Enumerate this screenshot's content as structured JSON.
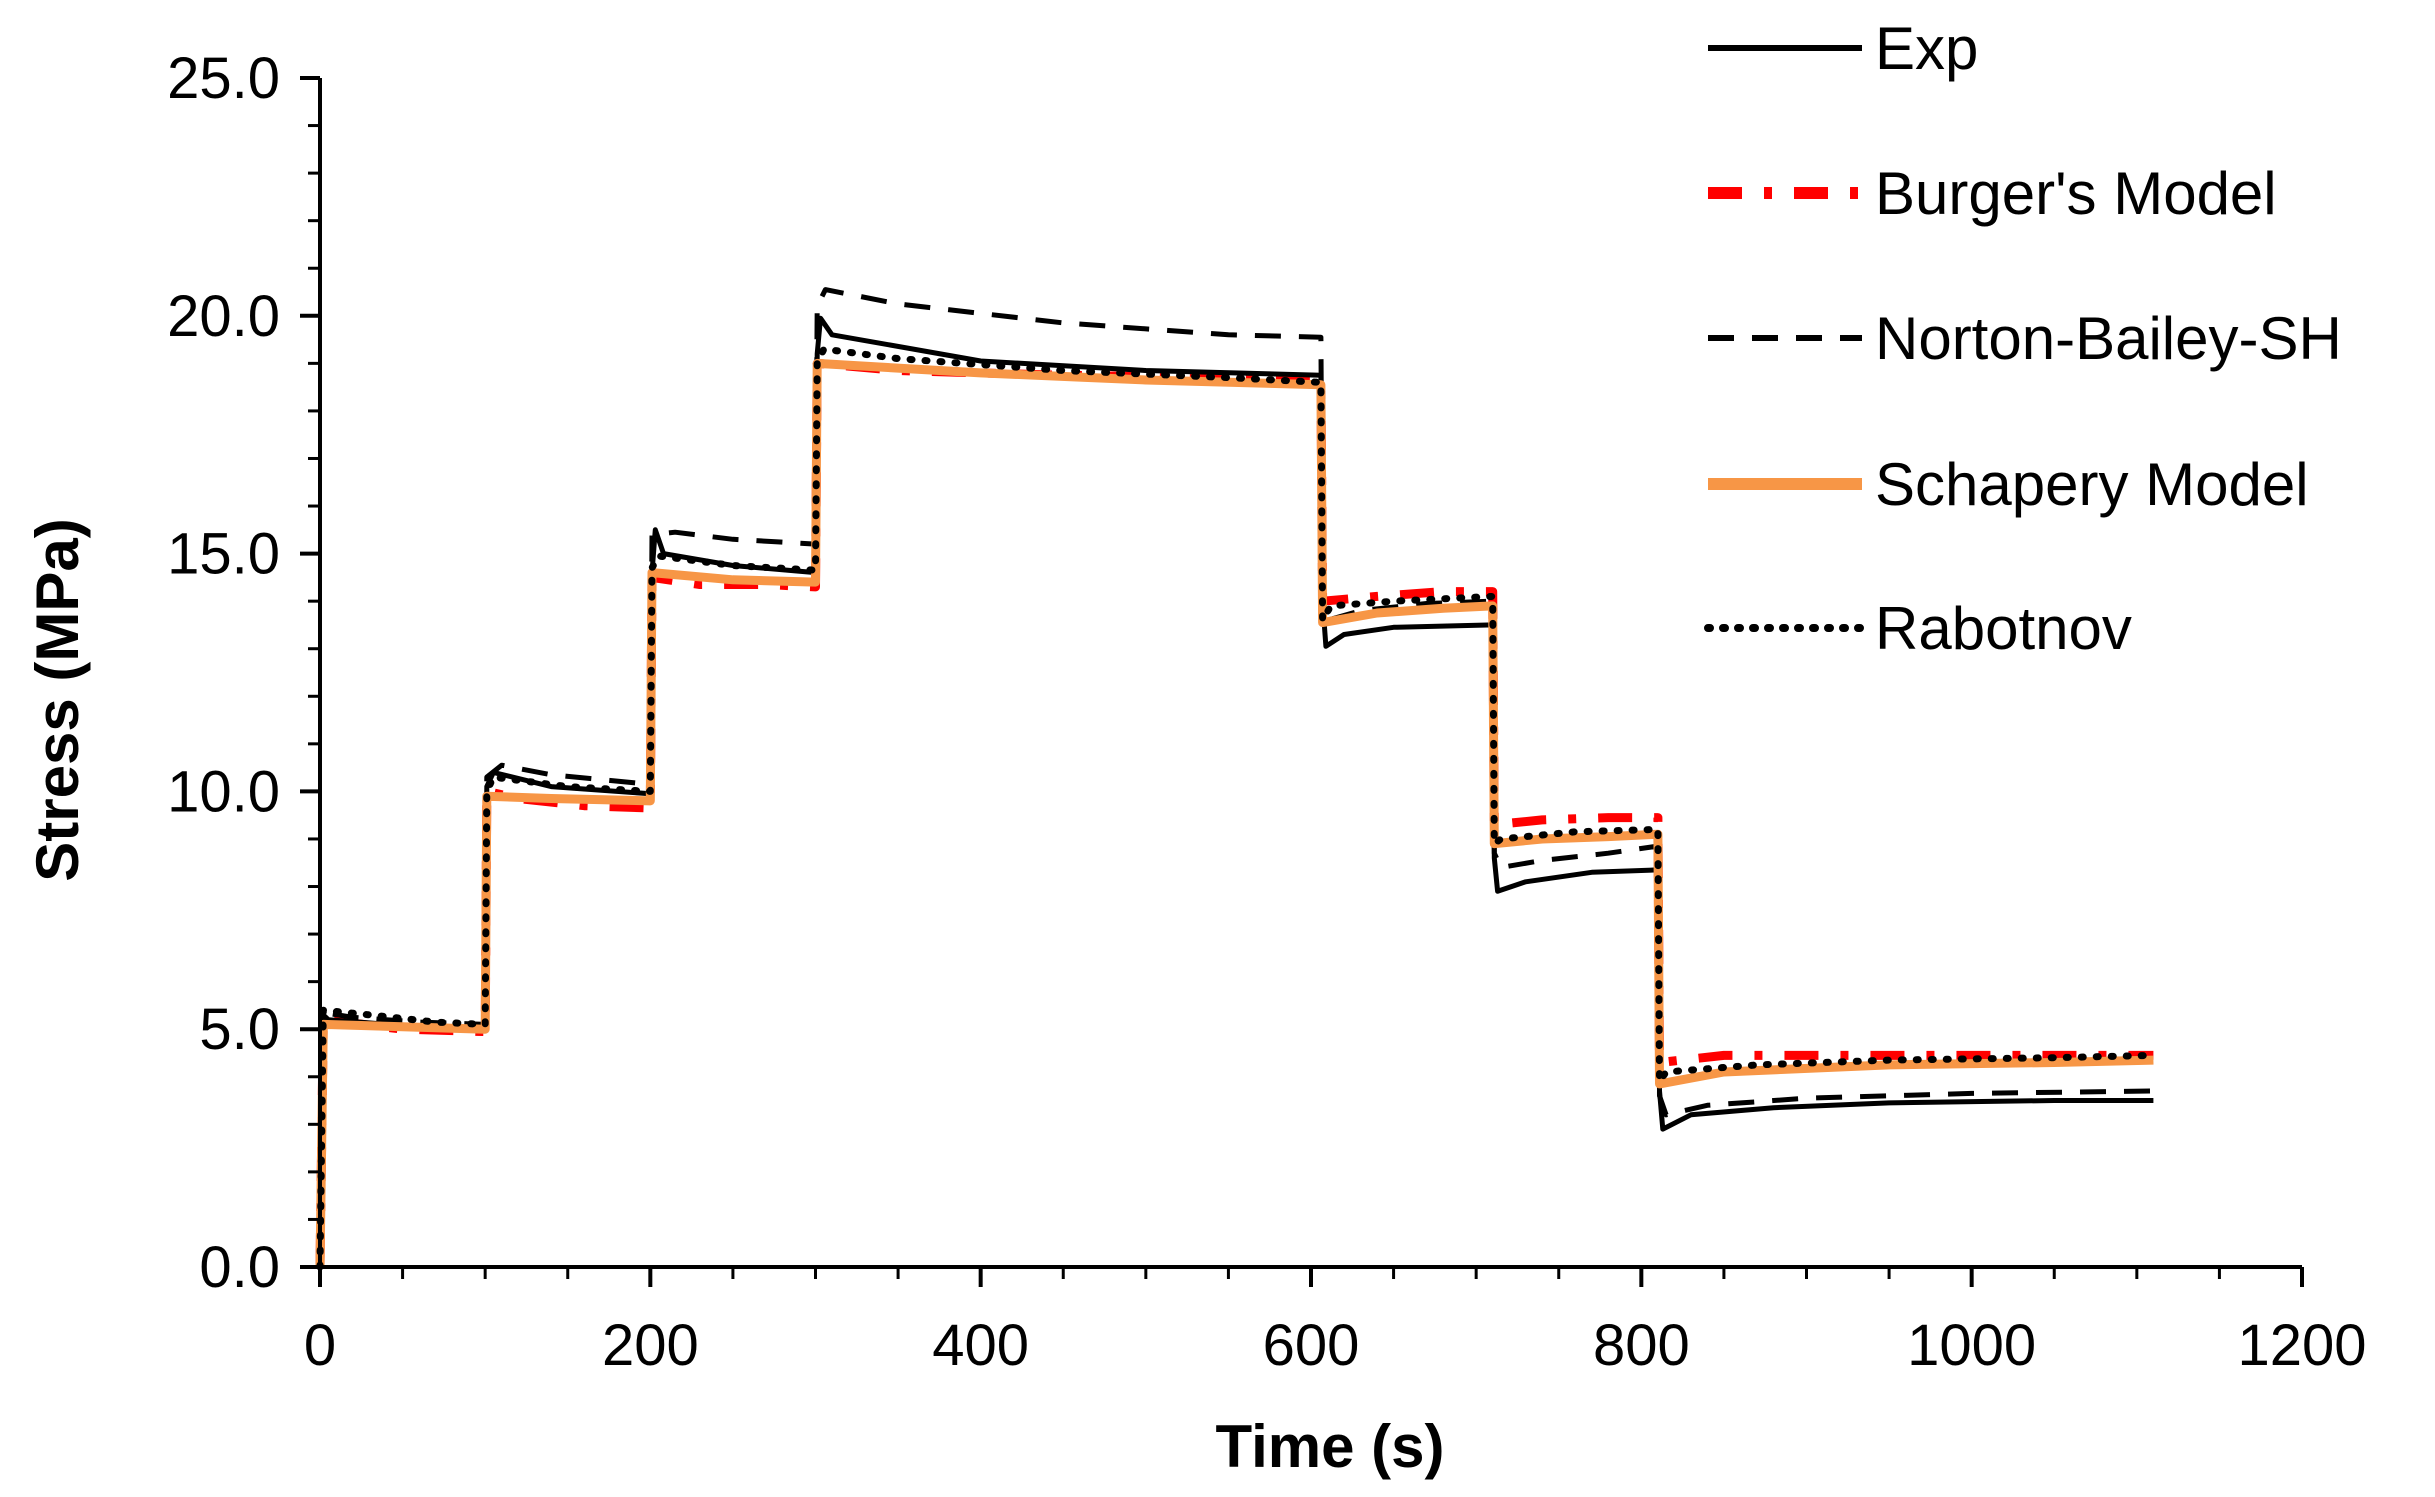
{
  "chart_data": {
    "type": "line",
    "title": "",
    "xlabel": "Time (s)",
    "ylabel": "Stress (MPa)",
    "xlim": [
      0,
      1200
    ],
    "ylim": [
      0,
      25
    ],
    "x_ticks": [
      0,
      200,
      400,
      600,
      800,
      1000,
      1200
    ],
    "x_tick_labels": [
      "0",
      "200",
      "400",
      "600",
      "800",
      "1000",
      "1200"
    ],
    "y_ticks": [
      0,
      5,
      10,
      15,
      20,
      25
    ],
    "y_tick_labels": [
      "0.0",
      "5.0",
      "10.0",
      "15.0",
      "20.0",
      "25.0"
    ],
    "grid": false,
    "legend_position": "top-right",
    "series": [
      {
        "name": "Exp",
        "color": "#000000",
        "style": "solid",
        "points": [
          [
            0,
            0
          ],
          [
            2,
            5.3
          ],
          [
            5,
            5.2
          ],
          [
            60,
            5.05
          ],
          [
            100,
            5.0
          ],
          [
            101,
            10.1
          ],
          [
            105,
            10.4
          ],
          [
            140,
            10.1
          ],
          [
            200,
            9.95
          ],
          [
            201,
            14.6
          ],
          [
            203,
            15.5
          ],
          [
            208,
            15.0
          ],
          [
            250,
            14.75
          ],
          [
            300,
            14.6
          ],
          [
            301,
            19.2
          ],
          [
            303,
            19.95
          ],
          [
            310,
            19.6
          ],
          [
            400,
            19.05
          ],
          [
            500,
            18.85
          ],
          [
            606,
            18.75
          ],
          [
            607,
            14.0
          ],
          [
            609,
            13.05
          ],
          [
            620,
            13.3
          ],
          [
            650,
            13.45
          ],
          [
            710,
            13.5
          ],
          [
            711,
            8.6
          ],
          [
            713,
            7.9
          ],
          [
            730,
            8.1
          ],
          [
            770,
            8.3
          ],
          [
            810,
            8.35
          ],
          [
            811,
            3.7
          ],
          [
            813,
            2.9
          ],
          [
            830,
            3.2
          ],
          [
            880,
            3.35
          ],
          [
            950,
            3.45
          ],
          [
            1050,
            3.5
          ],
          [
            1110,
            3.5
          ]
        ]
      },
      {
        "name": "Burger's Model",
        "color": "#ff0000",
        "style": "dashdot",
        "points": [
          [
            0,
            0
          ],
          [
            2,
            5.2
          ],
          [
            50,
            5.0
          ],
          [
            100,
            4.95
          ],
          [
            101,
            10.0
          ],
          [
            120,
            9.85
          ],
          [
            160,
            9.7
          ],
          [
            200,
            9.65
          ],
          [
            201,
            14.5
          ],
          [
            230,
            14.35
          ],
          [
            270,
            14.35
          ],
          [
            300,
            14.3
          ],
          [
            301,
            19.0
          ],
          [
            350,
            18.85
          ],
          [
            450,
            18.75
          ],
          [
            550,
            18.7
          ],
          [
            606,
            18.65
          ],
          [
            607,
            14.0
          ],
          [
            640,
            14.1
          ],
          [
            680,
            14.2
          ],
          [
            710,
            14.2
          ],
          [
            711,
            9.3
          ],
          [
            740,
            9.4
          ],
          [
            780,
            9.45
          ],
          [
            810,
            9.45
          ],
          [
            811,
            4.3
          ],
          [
            850,
            4.45
          ],
          [
            950,
            4.45
          ],
          [
            1050,
            4.45
          ],
          [
            1110,
            4.45
          ]
        ]
      },
      {
        "name": "Norton-Bailey-SH",
        "color": "#000000",
        "style": "dashed",
        "points": [
          [
            0,
            0
          ],
          [
            2,
            5.35
          ],
          [
            20,
            5.25
          ],
          [
            60,
            5.15
          ],
          [
            100,
            5.1
          ],
          [
            101,
            10.3
          ],
          [
            110,
            10.55
          ],
          [
            140,
            10.35
          ],
          [
            200,
            10.15
          ],
          [
            201,
            15.4
          ],
          [
            215,
            15.45
          ],
          [
            250,
            15.3
          ],
          [
            300,
            15.2
          ],
          [
            301,
            20.2
          ],
          [
            306,
            20.55
          ],
          [
            350,
            20.25
          ],
          [
            450,
            19.85
          ],
          [
            550,
            19.6
          ],
          [
            606,
            19.55
          ],
          [
            607,
            14.0
          ],
          [
            610,
            13.6
          ],
          [
            630,
            13.8
          ],
          [
            670,
            13.95
          ],
          [
            710,
            14.0
          ],
          [
            711,
            8.7
          ],
          [
            715,
            8.4
          ],
          [
            740,
            8.55
          ],
          [
            780,
            8.7
          ],
          [
            810,
            8.85
          ],
          [
            811,
            3.6
          ],
          [
            815,
            3.2
          ],
          [
            840,
            3.4
          ],
          [
            900,
            3.55
          ],
          [
            1000,
            3.65
          ],
          [
            1110,
            3.7
          ]
        ]
      },
      {
        "name": "Schapery Model",
        "color": "#f79646",
        "style": "solid",
        "points": [
          [
            0,
            0
          ],
          [
            2,
            5.1
          ],
          [
            50,
            5.05
          ],
          [
            100,
            5.0
          ],
          [
            101,
            9.9
          ],
          [
            140,
            9.85
          ],
          [
            200,
            9.8
          ],
          [
            201,
            14.6
          ],
          [
            250,
            14.45
          ],
          [
            300,
            14.4
          ],
          [
            301,
            19.0
          ],
          [
            400,
            18.8
          ],
          [
            500,
            18.65
          ],
          [
            606,
            18.55
          ],
          [
            607,
            13.55
          ],
          [
            640,
            13.75
          ],
          [
            680,
            13.85
          ],
          [
            710,
            13.9
          ],
          [
            711,
            8.9
          ],
          [
            740,
            9.0
          ],
          [
            780,
            9.05
          ],
          [
            810,
            9.1
          ],
          [
            811,
            3.85
          ],
          [
            850,
            4.1
          ],
          [
            950,
            4.25
          ],
          [
            1050,
            4.3
          ],
          [
            1110,
            4.35
          ]
        ]
      },
      {
        "name": "Rabotnov",
        "color": "#000000",
        "style": "dotted",
        "points": [
          [
            0,
            0
          ],
          [
            2,
            5.4
          ],
          [
            30,
            5.3
          ],
          [
            70,
            5.15
          ],
          [
            100,
            5.1
          ],
          [
            101,
            10.0
          ],
          [
            105,
            10.3
          ],
          [
            150,
            10.1
          ],
          [
            200,
            10.0
          ],
          [
            201,
            14.7
          ],
          [
            205,
            14.95
          ],
          [
            250,
            14.75
          ],
          [
            300,
            14.65
          ],
          [
            301,
            19.0
          ],
          [
            305,
            19.3
          ],
          [
            350,
            19.1
          ],
          [
            450,
            18.85
          ],
          [
            550,
            18.7
          ],
          [
            606,
            18.6
          ],
          [
            607,
            13.6
          ],
          [
            612,
            13.9
          ],
          [
            650,
            14.0
          ],
          [
            710,
            14.1
          ],
          [
            711,
            8.9
          ],
          [
            715,
            9.0
          ],
          [
            760,
            9.15
          ],
          [
            810,
            9.2
          ],
          [
            811,
            3.9
          ],
          [
            815,
            4.1
          ],
          [
            870,
            4.25
          ],
          [
            950,
            4.35
          ],
          [
            1050,
            4.4
          ],
          [
            1110,
            4.45
          ]
        ]
      }
    ]
  }
}
